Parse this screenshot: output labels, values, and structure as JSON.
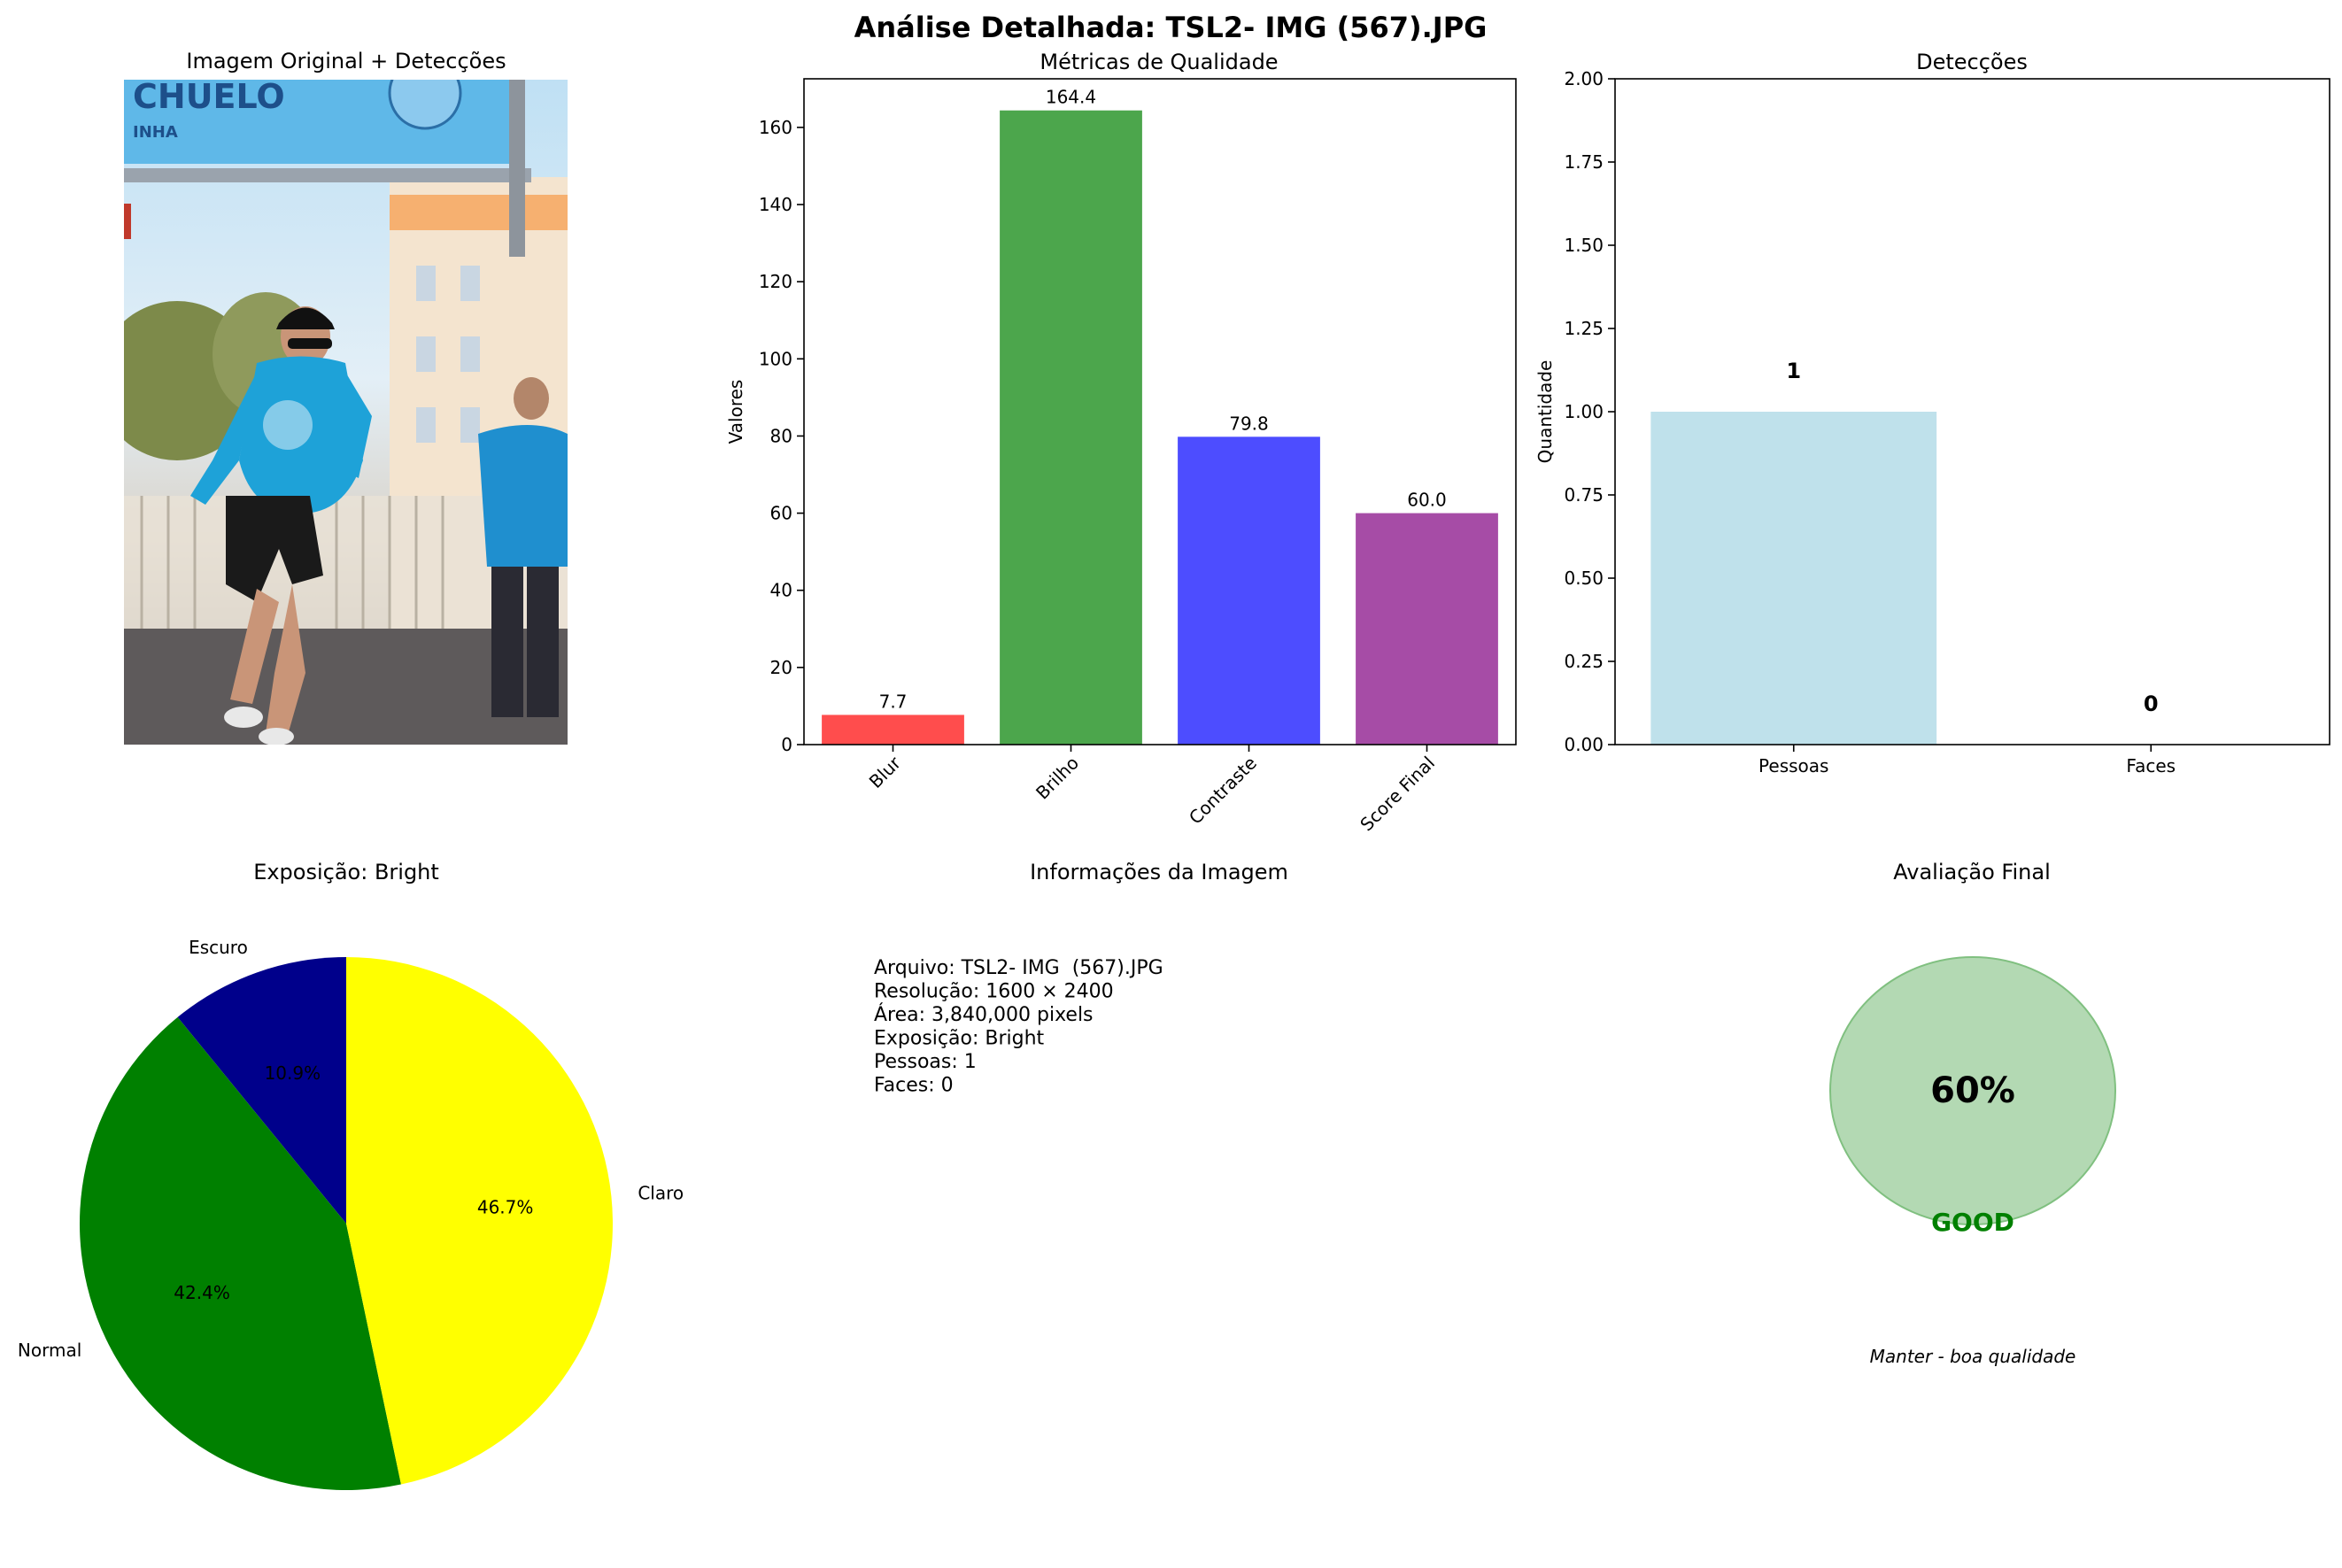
{
  "figure": {
    "suptitle": "Análise Detalhada: TSL2- IMG  (567).JPG"
  },
  "photo_panel": {
    "title": "Imagem Original + Detecções",
    "banner_text": "CHUELO",
    "banner_subtext": "INHA",
    "colors": {
      "sky": "#cfe6f5",
      "banner": "#5fb8e8",
      "shirt": "#1ea2d8"
    }
  },
  "chart_data": [
    {
      "id": "metrics",
      "type": "bar",
      "title": "Métricas de Qualidade",
      "xlabel": "",
      "ylabel": "Valores",
      "categories": [
        "Blur",
        "Brilho",
        "Contraste",
        "Score Final"
      ],
      "values": [
        7.7,
        164.4,
        79.8,
        60.0
      ],
      "value_labels": [
        "7.7",
        "164.4",
        "79.8",
        "60.0"
      ],
      "colors": [
        "#ff4d4d",
        "#4ca64c",
        "#4d4dff",
        "#a64ca6"
      ],
      "ylim": [
        0,
        172.6
      ],
      "yticks": [
        0,
        20,
        40,
        60,
        80,
        100,
        120,
        140,
        160
      ],
      "ytick_labels": [
        "0",
        "20",
        "40",
        "60",
        "80",
        "100",
        "120",
        "140",
        "160"
      ],
      "xtick_rotation": 45,
      "grid": false
    },
    {
      "id": "detections",
      "type": "bar",
      "title": "Detecções",
      "xlabel": "",
      "ylabel": "Quantidade",
      "categories": [
        "Pessoas",
        "Faces"
      ],
      "values": [
        1,
        0
      ],
      "value_labels": [
        "1",
        "0"
      ],
      "colors": [
        "#add8e6",
        "#f08080"
      ],
      "ylim": [
        0,
        2.0
      ],
      "yticks": [
        0,
        0.25,
        0.5,
        0.75,
        1.0,
        1.25,
        1.5,
        1.75,
        2.0
      ],
      "ytick_labels": [
        "0.00",
        "0.25",
        "0.50",
        "0.75",
        "1.00",
        "1.25",
        "1.50",
        "1.75",
        "2.00"
      ],
      "grid": false
    },
    {
      "id": "exposure",
      "type": "pie",
      "title": "Exposição: Bright",
      "labels": [
        "Escuro",
        "Normal",
        "Claro"
      ],
      "values": [
        10.9,
        42.4,
        46.7
      ],
      "pct_labels": [
        "10.9%",
        "42.4%",
        "46.7%"
      ],
      "colors": [
        "#00008b",
        "#008000",
        "#ffff00"
      ],
      "start_angle_deg": 90,
      "direction": "counterclockwise"
    }
  ],
  "info_panel": {
    "title": "Informações da Imagem",
    "lines": [
      "Arquivo: TSL2- IMG  (567).JPG",
      "Resolução: 1600 × 2400",
      "Área: 3,840,000 pixels",
      "Exposição: Bright",
      "Pessoas: 1",
      "Faces: 0"
    ]
  },
  "final_panel": {
    "title": "Avaliação Final",
    "score_text": "60%",
    "rating": "GOOD",
    "recommendation": "Manter - boa qualidade",
    "colors": {
      "circle_fill": "#b3d9b3",
      "circle_edge": "#80c080",
      "rating": "#008000"
    }
  }
}
